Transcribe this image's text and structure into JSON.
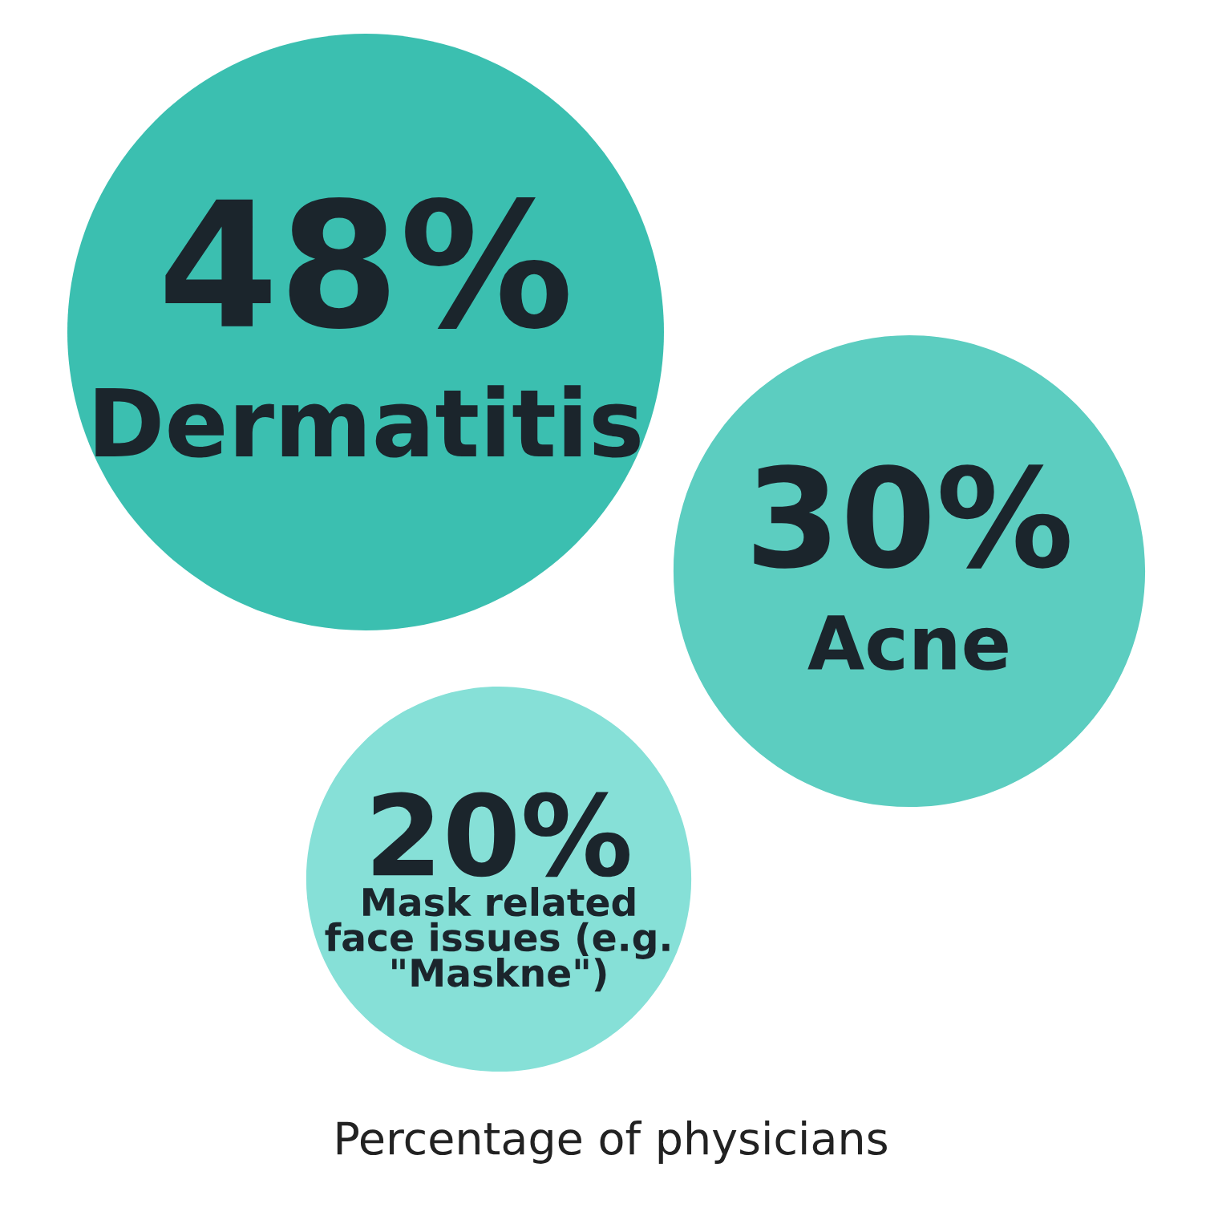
{
  "chart_data": {
    "type": "other",
    "categories": [
      "Dermatitis",
      "Acne",
      "Mask related\nface issues (e.g.\n\"Maskne\")"
    ],
    "values": [
      48,
      30,
      20
    ],
    "value_labels": [
      "48%",
      "30%",
      "20%"
    ],
    "colors": [
      "#3bbfb0",
      "#5ccdc0",
      "#86e0d7"
    ],
    "xlabel": "Percentage of physicians"
  }
}
